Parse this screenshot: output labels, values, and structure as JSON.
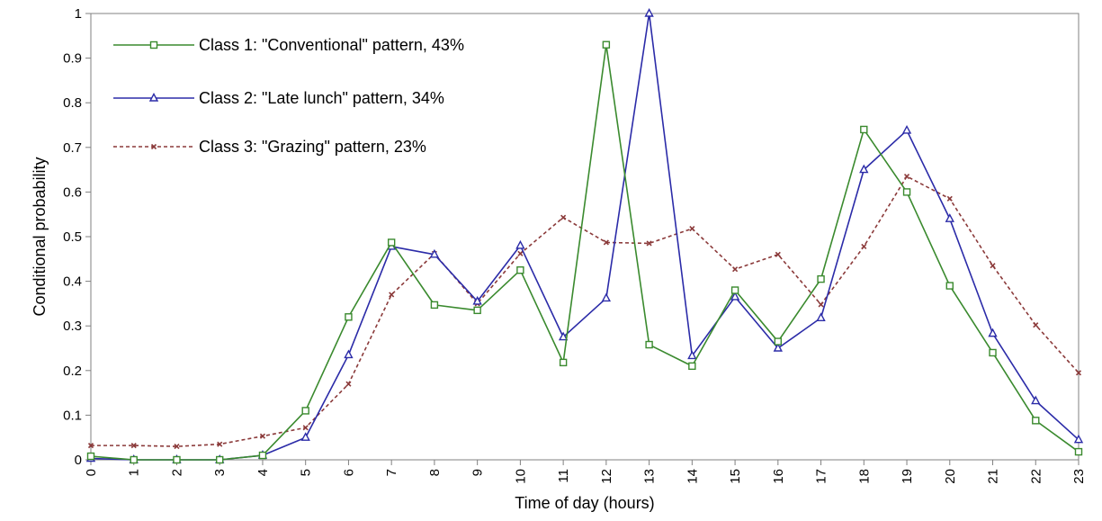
{
  "chart_data": {
    "type": "line",
    "title": "",
    "xlabel": "Time of day (hours)",
    "ylabel": "Conditional probability",
    "xlim": [
      0,
      23
    ],
    "ylim": [
      0,
      1
    ],
    "x": [
      0,
      1,
      2,
      3,
      4,
      5,
      6,
      7,
      8,
      9,
      10,
      11,
      12,
      13,
      14,
      15,
      16,
      17,
      18,
      19,
      20,
      21,
      22,
      23
    ],
    "x_tick_labels": [
      "0",
      "1",
      "2",
      "3",
      "4",
      "5",
      "6",
      "7",
      "8",
      "9",
      "10",
      "11",
      "12",
      "13",
      "14",
      "15",
      "16",
      "17",
      "18",
      "19",
      "20",
      "21",
      "22",
      "23"
    ],
    "y_ticks": [
      0,
      0.1,
      0.2,
      0.3,
      0.4,
      0.5,
      0.6,
      0.7,
      0.8,
      0.9,
      1
    ],
    "y_tick_labels": [
      "0",
      "0.1",
      "0.2",
      "0.3",
      "0.4",
      "0.5",
      "0.6",
      "0.7",
      "0.8",
      "0.9",
      "1"
    ],
    "grid": false,
    "legend_position": "top-left",
    "series": [
      {
        "name": "Class 1: \"Conventional\" pattern, 43%",
        "color": "#3a8a2e",
        "marker": "square",
        "line_style": "solid",
        "values": [
          0.008,
          0.0,
          0.0,
          0.0,
          0.01,
          0.11,
          0.32,
          0.487,
          0.347,
          0.335,
          0.425,
          0.218,
          0.93,
          0.258,
          0.21,
          0.38,
          0.265,
          0.405,
          0.74,
          0.6,
          0.39,
          0.24,
          0.088,
          0.018
        ]
      },
      {
        "name": "Class 2: \"Late lunch\" pattern, 34%",
        "color": "#2b2ba8",
        "marker": "triangle",
        "line_style": "solid",
        "values": [
          0.003,
          0.0,
          0.0,
          0.0,
          0.01,
          0.05,
          0.235,
          0.478,
          0.46,
          0.355,
          0.48,
          0.275,
          0.362,
          1.0,
          0.233,
          0.365,
          0.25,
          0.318,
          0.65,
          0.738,
          0.54,
          0.283,
          0.132,
          0.045
        ]
      },
      {
        "name": "Class 3: \"Grazing\" pattern, 23%",
        "color": "#8b3a3a",
        "marker": "x",
        "line_style": "dashed",
        "values": [
          0.032,
          0.032,
          0.03,
          0.035,
          0.053,
          0.072,
          0.17,
          0.37,
          0.462,
          0.35,
          0.462,
          0.543,
          0.487,
          0.485,
          0.518,
          0.427,
          0.46,
          0.348,
          0.478,
          0.635,
          0.585,
          0.435,
          0.302,
          0.195
        ]
      }
    ]
  }
}
